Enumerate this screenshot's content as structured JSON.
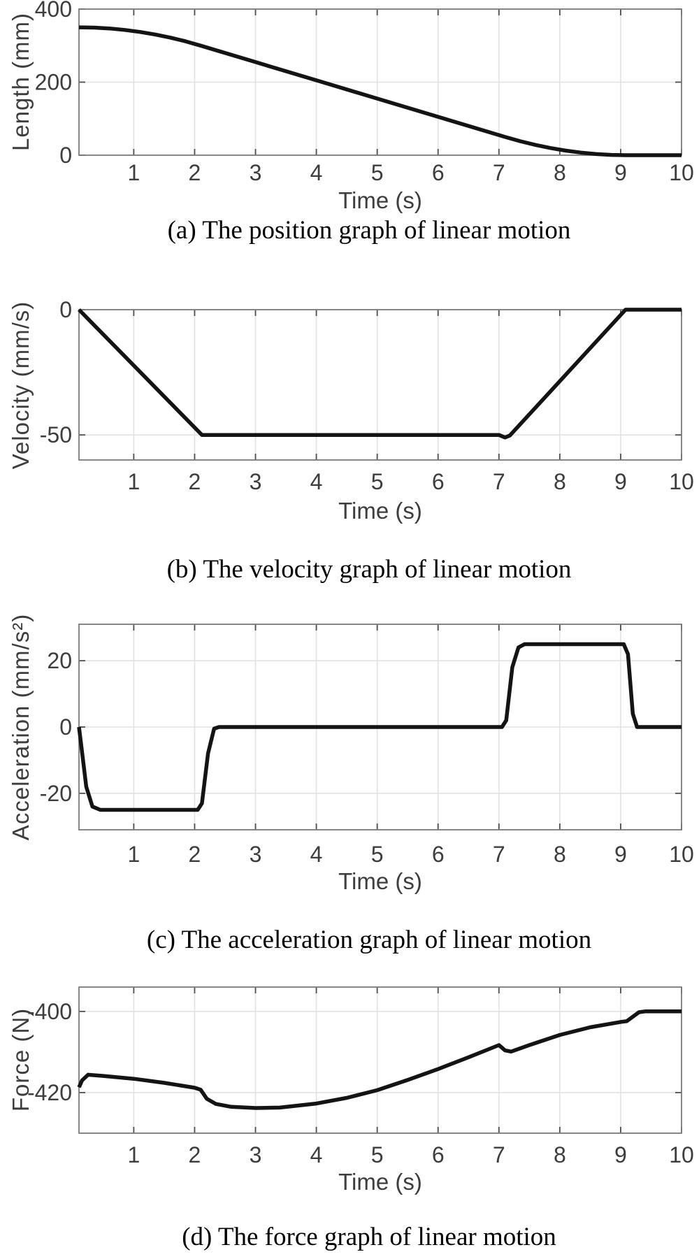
{
  "figure": {
    "background_color": "#ffffff",
    "line_color": "#141414",
    "axis_border_color": "#7a7a7a",
    "grid_color": "#e2e2e2",
    "tick_text_color": "#3d3d3d"
  },
  "chart_data": [
    {
      "id": "position",
      "type": "line",
      "caption": "(a) The position graph of linear motion",
      "xlabel": "Time (s)",
      "ylabel": "Length (mm)",
      "xlim": [
        0.1,
        10
      ],
      "ylim": [
        0,
        400
      ],
      "x_ticks": [
        1,
        2,
        3,
        4,
        5,
        6,
        7,
        8,
        9,
        10
      ],
      "y_ticks": [
        0,
        200,
        400
      ],
      "grid": true,
      "legend": "none",
      "points": [
        [
          0.1,
          350
        ],
        [
          0.35,
          349.2
        ],
        [
          0.6,
          346.9
        ],
        [
          0.85,
          343.0
        ],
        [
          1.1,
          337.5
        ],
        [
          1.35,
          330.5
        ],
        [
          1.6,
          321.9
        ],
        [
          1.85,
          311.7
        ],
        [
          2.1,
          300
        ],
        [
          3,
          255
        ],
        [
          4,
          205
        ],
        [
          5,
          155
        ],
        [
          6,
          105
        ],
        [
          7,
          55
        ],
        [
          7.1,
          50
        ],
        [
          7.35,
          38.3
        ],
        [
          7.6,
          28.1
        ],
        [
          7.85,
          19.5
        ],
        [
          8.1,
          12.5
        ],
        [
          8.35,
          7.0
        ],
        [
          8.6,
          3.1
        ],
        [
          8.85,
          0.8
        ],
        [
          9.1,
          0
        ],
        [
          10,
          0
        ]
      ]
    },
    {
      "id": "velocity",
      "type": "line",
      "caption": "(b) The velocity graph of linear motion",
      "xlabel": "Time (s)",
      "ylabel": "Velocity (mm/s)",
      "xlim": [
        0.1,
        10
      ],
      "ylim": [
        -60,
        0
      ],
      "x_ticks": [
        1,
        2,
        3,
        4,
        5,
        6,
        7,
        8,
        9,
        10
      ],
      "y_ticks": [
        -50,
        0
      ],
      "grid": true,
      "legend": "none",
      "points": [
        [
          0.1,
          0
        ],
        [
          2.12,
          -50
        ],
        [
          7.0,
          -50
        ],
        [
          7.1,
          -51
        ],
        [
          7.18,
          -50.2
        ],
        [
          9.08,
          0
        ],
        [
          10,
          0
        ]
      ]
    },
    {
      "id": "acceleration",
      "type": "line",
      "caption": "(c) The acceleration graph of linear motion",
      "xlabel": "Time (s)",
      "ylabel": "Acceleration (mm/s²)",
      "xlim": [
        0.1,
        10
      ],
      "ylim": [
        -31,
        31
      ],
      "x_ticks": [
        1,
        2,
        3,
        4,
        5,
        6,
        7,
        8,
        9,
        10
      ],
      "y_ticks": [
        -20,
        0,
        20
      ],
      "grid": true,
      "legend": "none",
      "points": [
        [
          0.1,
          0
        ],
        [
          0.14,
          -6
        ],
        [
          0.22,
          -18
        ],
        [
          0.32,
          -24
        ],
        [
          0.45,
          -25
        ],
        [
          2.05,
          -25
        ],
        [
          2.12,
          -23
        ],
        [
          2.22,
          -8
        ],
        [
          2.32,
          -0.5
        ],
        [
          2.4,
          0
        ],
        [
          7.05,
          0
        ],
        [
          7.12,
          2
        ],
        [
          7.22,
          18
        ],
        [
          7.32,
          24
        ],
        [
          7.42,
          25
        ],
        [
          9.05,
          25
        ],
        [
          9.12,
          22
        ],
        [
          9.2,
          4
        ],
        [
          9.27,
          0
        ],
        [
          10,
          0
        ]
      ]
    },
    {
      "id": "force",
      "type": "line",
      "caption": "(d) The force graph of linear motion",
      "xlabel": "Time (s)",
      "ylabel": "Force (N)",
      "xlim": [
        0.1,
        10
      ],
      "ylim": [
        -430,
        -394
      ],
      "x_ticks": [
        1,
        2,
        3,
        4,
        5,
        6,
        7,
        8,
        9,
        10
      ],
      "y_ticks": [
        -420,
        -400
      ],
      "grid": true,
      "legend": "none",
      "points": [
        [
          0.1,
          -418.7
        ],
        [
          0.15,
          -417.0
        ],
        [
          0.25,
          -415.6
        ],
        [
          0.5,
          -415.9
        ],
        [
          1.0,
          -416.6
        ],
        [
          1.5,
          -417.6
        ],
        [
          2.0,
          -418.8
        ],
        [
          2.1,
          -419.3
        ],
        [
          2.2,
          -421.5
        ],
        [
          2.35,
          -422.8
        ],
        [
          2.6,
          -423.5
        ],
        [
          3.0,
          -423.8
        ],
        [
          3.4,
          -423.7
        ],
        [
          4.0,
          -422.7
        ],
        [
          4.5,
          -421.3
        ],
        [
          5.0,
          -419.4
        ],
        [
          5.5,
          -416.9
        ],
        [
          6.0,
          -414.2
        ],
        [
          6.5,
          -411.3
        ],
        [
          6.9,
          -408.9
        ],
        [
          7.0,
          -408.3
        ],
        [
          7.1,
          -409.6
        ],
        [
          7.2,
          -409.9
        ],
        [
          7.5,
          -408.3
        ],
        [
          8.0,
          -405.8
        ],
        [
          8.5,
          -403.9
        ],
        [
          9.0,
          -402.6
        ],
        [
          9.1,
          -402.4
        ],
        [
          9.3,
          -400.2
        ],
        [
          9.4,
          -400
        ],
        [
          10,
          -400
        ]
      ]
    }
  ]
}
